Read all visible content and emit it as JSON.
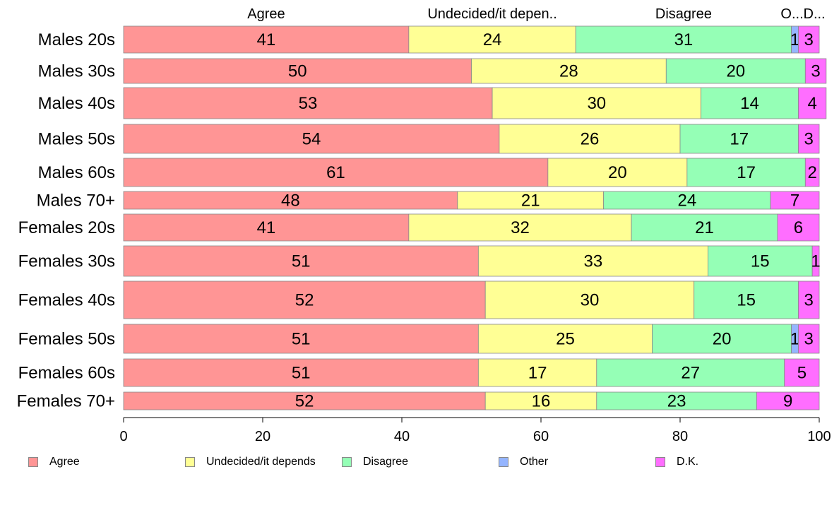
{
  "chart_data": {
    "type": "bar",
    "orientation": "horizontal",
    "stacked": true,
    "categories": [
      "Males 20s",
      "Males 30s",
      "Males 40s",
      "Males 50s",
      "Males 60s",
      "Males 70+",
      "Females 20s",
      "Females 30s",
      "Females 40s",
      "Females 50s",
      "Females 60s",
      "Females 70+"
    ],
    "series": [
      {
        "name": "Agree",
        "short_label": "Agree",
        "color": "#FF9595",
        "values": [
          41,
          50,
          53,
          54,
          61,
          48,
          41,
          51,
          52,
          51,
          51,
          52
        ]
      },
      {
        "name": "Undecided/it depends",
        "short_label": "Undecided/it depen..",
        "color": "#FFFF95",
        "values": [
          24,
          28,
          30,
          26,
          20,
          21,
          32,
          33,
          30,
          25,
          17,
          16
        ]
      },
      {
        "name": "Disagree",
        "short_label": "Disagree",
        "color": "#95FFB6",
        "values": [
          31,
          20,
          14,
          17,
          17,
          24,
          21,
          15,
          15,
          20,
          27,
          23
        ]
      },
      {
        "name": "Other",
        "short_label": "O...",
        "color": "#95B5FF",
        "values": [
          1,
          0,
          0,
          0,
          0,
          0,
          0,
          0,
          0,
          1,
          0,
          0
        ]
      },
      {
        "name": "D.K.",
        "short_label": "D...",
        "color": "#FF6EFF",
        "values": [
          3,
          3,
          4,
          3,
          2,
          7,
          6,
          1,
          3,
          3,
          5,
          9
        ]
      }
    ],
    "xlim": [
      0,
      100
    ],
    "xticks": [
      0,
      20,
      40,
      60,
      80,
      100
    ],
    "legend_position": "bottom",
    "grid": false
  }
}
